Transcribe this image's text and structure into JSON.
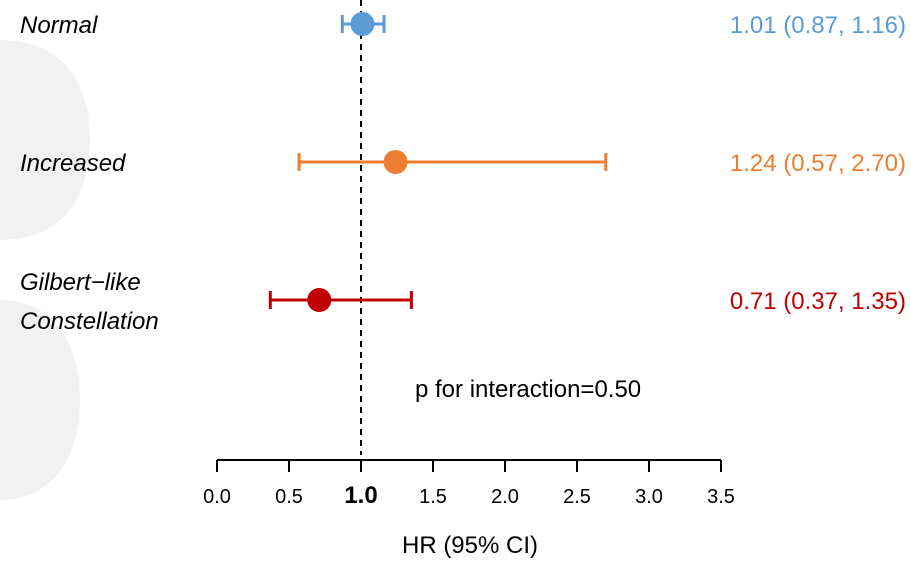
{
  "chart_data": {
    "type": "forest",
    "xlabel": "HR (95% CI)",
    "xlim": [
      0.0,
      3.5
    ],
    "ticks": [
      "0.0",
      "0.5",
      "1.0",
      "1.5",
      "2.0",
      "2.5",
      "3.0",
      "3.5"
    ],
    "reference_line": 1.0,
    "annotation": "p for interaction=0.50",
    "rows": [
      {
        "label_lines": [
          "Normal"
        ],
        "hr": 1.01,
        "lo": 0.87,
        "hi": 1.16,
        "text": "1.01 (0.87, 1.16)",
        "color": "#5B9BD5"
      },
      {
        "label_lines": [
          "Increased"
        ],
        "hr": 1.24,
        "lo": 0.57,
        "hi": 2.7,
        "text": "1.24 (0.57, 2.70)",
        "color": "#ED7D31"
      },
      {
        "label_lines": [
          "Gilbert−like",
          "Constellation"
        ],
        "hr": 0.71,
        "lo": 0.37,
        "hi": 1.35,
        "text": "0.71 (0.37, 1.35)",
        "color": "#C00000"
      }
    ]
  }
}
